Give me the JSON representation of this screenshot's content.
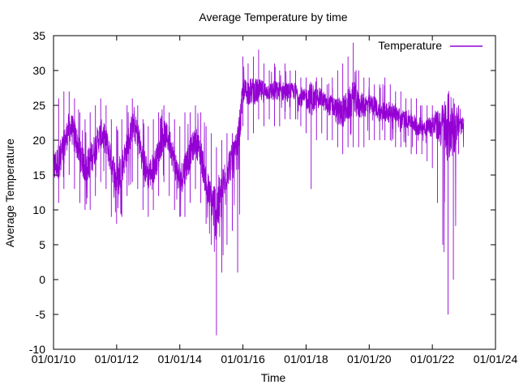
{
  "chart_data": {
    "type": "line",
    "title": "Average Temperature by time",
    "xlabel": "Time",
    "ylabel": "Average Temperature",
    "xlim": [
      "2010-01-01",
      "2024-01-01"
    ],
    "ylim": [
      -10,
      35
    ],
    "x_ticks": [
      "01/01/10",
      "01/01/12",
      "01/01/14",
      "01/01/16",
      "01/01/18",
      "01/01/20",
      "01/01/22",
      "01/01/24"
    ],
    "y_ticks": [
      "-10",
      "-5",
      "0",
      "5",
      "10",
      "15",
      "20",
      "25",
      "30",
      "35"
    ],
    "grid": false,
    "legend_position": "top-right",
    "series": [
      {
        "name": "Temperature",
        "color": "#9400d3",
        "x": [
          "2010-01-01",
          "2010-03-01",
          "2010-05-01",
          "2010-07-01",
          "2010-09-01",
          "2010-11-01",
          "2011-01-01",
          "2011-03-01",
          "2011-05-01",
          "2011-07-01",
          "2011-09-01",
          "2011-11-01",
          "2012-01-01",
          "2012-03-01",
          "2012-05-01",
          "2012-07-01",
          "2012-09-01",
          "2012-11-01",
          "2013-01-01",
          "2013-03-01",
          "2013-05-01",
          "2013-07-01",
          "2013-09-01",
          "2013-11-01",
          "2014-01-01",
          "2014-03-01",
          "2014-05-01",
          "2014-07-01",
          "2014-09-01",
          "2014-11-01",
          "2015-01-01",
          "2015-03-01",
          "2015-05-01",
          "2015-07-01",
          "2015-09-01",
          "2015-11-01",
          "2016-01-01",
          "2016-03-01",
          "2016-05-01",
          "2016-07-01",
          "2016-09-01",
          "2016-11-01",
          "2017-01-01",
          "2017-03-01",
          "2017-05-01",
          "2017-07-01",
          "2017-09-01",
          "2017-11-01",
          "2018-01-01",
          "2018-03-01",
          "2018-05-01",
          "2018-07-01",
          "2018-09-01",
          "2018-11-01",
          "2019-01-01",
          "2019-03-01",
          "2019-05-01",
          "2019-07-01",
          "2019-09-01",
          "2019-11-01",
          "2020-01-01",
          "2020-03-01",
          "2020-05-01",
          "2020-07-01",
          "2020-09-01",
          "2020-11-01",
          "2021-01-01",
          "2021-03-01",
          "2021-05-01",
          "2021-07-01",
          "2021-09-01",
          "2021-11-01",
          "2022-01-01",
          "2022-03-01",
          "2022-05-01",
          "2022-07-01",
          "2022-09-01",
          "2022-11-01"
        ],
        "mean": [
          16,
          17,
          19,
          22,
          21,
          18,
          16,
          17,
          19,
          21,
          20,
          17,
          14,
          16,
          19,
          22,
          21,
          17,
          15,
          16,
          18,
          21,
          20,
          17,
          14,
          16,
          18,
          20,
          18,
          14,
          11,
          10,
          12,
          16,
          17,
          18,
          27,
          27,
          27,
          27,
          27,
          27,
          27,
          27,
          27,
          27,
          27,
          26,
          26,
          26,
          26,
          26,
          25,
          25,
          24,
          24,
          25,
          26,
          25,
          25,
          25,
          25,
          24,
          24,
          24,
          24,
          23,
          23,
          23,
          22,
          22,
          22,
          22,
          22,
          22,
          22,
          22,
          22
        ],
        "low": [
          10,
          11,
          13,
          15,
          13,
          11,
          10,
          10,
          12,
          14,
          13,
          9,
          8,
          9,
          12,
          14,
          13,
          10,
          9,
          10,
          12,
          14,
          12,
          10,
          9,
          9,
          11,
          13,
          11,
          8,
          5,
          -8,
          1,
          5,
          7,
          1,
          22,
          20,
          21,
          23,
          22,
          23,
          22,
          22,
          23,
          23,
          23,
          22,
          21,
          13,
          20,
          21,
          20,
          20,
          19,
          18,
          19,
          19,
          19,
          19,
          20,
          20,
          20,
          20,
          20,
          19,
          19,
          19,
          18,
          18,
          18,
          17,
          16,
          11,
          5,
          -5,
          0,
          18
        ],
        "high": [
          24,
          26,
          27,
          27,
          26,
          24,
          23,
          24,
          25,
          26,
          25,
          23,
          22,
          23,
          25,
          26,
          25,
          23,
          22,
          23,
          24,
          25,
          24,
          23,
          22,
          24,
          24,
          25,
          24,
          22,
          21,
          19,
          20,
          21,
          21,
          22,
          32,
          31,
          32,
          33,
          31,
          30,
          31,
          30,
          31,
          30,
          30,
          29,
          29,
          28,
          29,
          29,
          28,
          29,
          30,
          31,
          32,
          34,
          30,
          29,
          29,
          28,
          28,
          29,
          28,
          27,
          27,
          26,
          26,
          26,
          25,
          25,
          25,
          24,
          25,
          25,
          26,
          25
        ]
      }
    ]
  }
}
